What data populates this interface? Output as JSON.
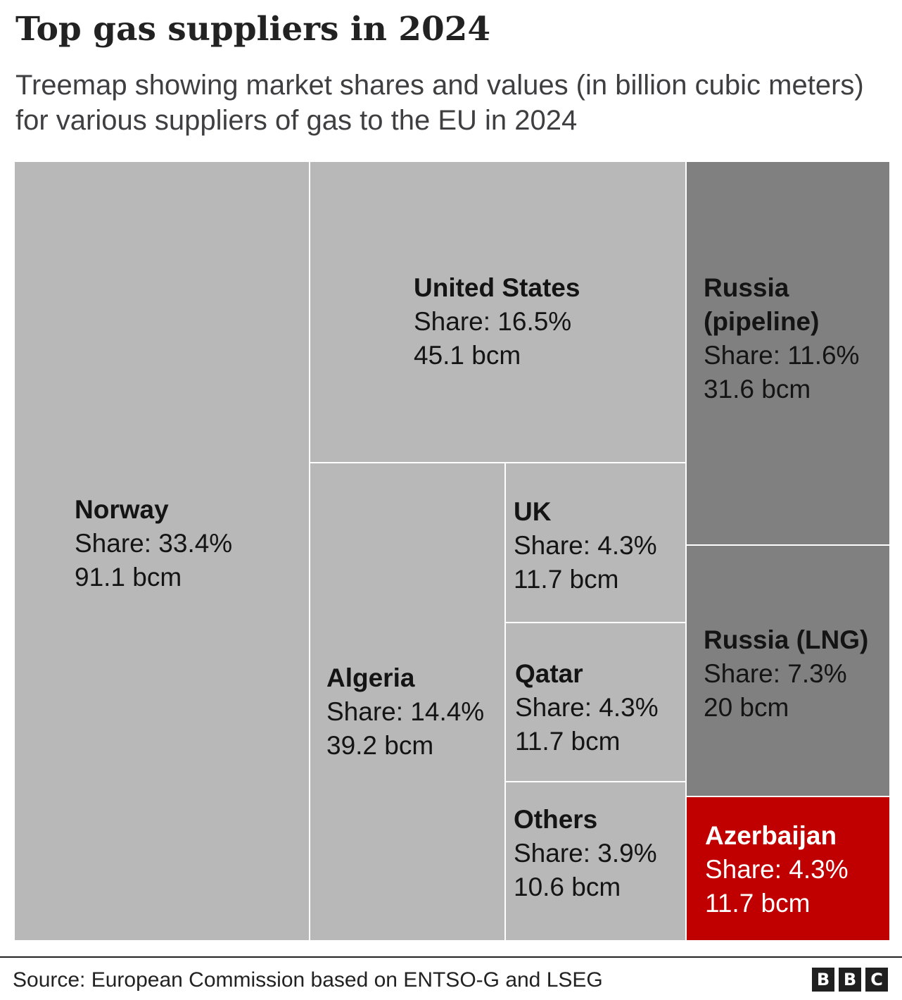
{
  "title": "Top gas suppliers in 2024",
  "subtitle": "Treemap showing market shares and values (in billion cubic meters) for various suppliers of gas to the EU in 2024",
  "source": "Source: European Commission based on ENTSO-G and LSEG",
  "logo": [
    "B",
    "B",
    "C"
  ],
  "colors": {
    "default": "#b8b8b8",
    "russia": "#808080",
    "highlight": "#c00000",
    "border": "#ffffff"
  },
  "chart_data": {
    "type": "treemap",
    "title": "Top gas suppliers in 2024",
    "units": "bcm",
    "items": [
      {
        "name": "Norway",
        "share": "Share: 33.4%",
        "value": "91.1 bcm",
        "share_pct": 33.4,
        "bcm": 91.1,
        "color": "#b8b8b8"
      },
      {
        "name": "United States",
        "share": "Share: 16.5%",
        "value": "45.1 bcm",
        "share_pct": 16.5,
        "bcm": 45.1,
        "color": "#b8b8b8"
      },
      {
        "name": "Algeria",
        "share": "Share: 14.4%",
        "value": "39.2 bcm",
        "share_pct": 14.4,
        "bcm": 39.2,
        "color": "#b8b8b8"
      },
      {
        "name": "UK",
        "share": "Share: 4.3%",
        "value": "11.7 bcm",
        "share_pct": 4.3,
        "bcm": 11.7,
        "color": "#b8b8b8"
      },
      {
        "name": "Qatar",
        "share": "Share: 4.3%",
        "value": "11.7 bcm",
        "share_pct": 4.3,
        "bcm": 11.7,
        "color": "#b8b8b8"
      },
      {
        "name": "Others",
        "share": "Share: 3.9%",
        "value": "10.6 bcm",
        "share_pct": 3.9,
        "bcm": 10.6,
        "color": "#b8b8b8"
      },
      {
        "name": "Russia (pipeline)",
        "share": "Share: 11.6%",
        "value": "31.6 bcm",
        "share_pct": 11.6,
        "bcm": 31.6,
        "color": "#808080"
      },
      {
        "name": "Russia (LNG)",
        "share": "Share: 7.3%",
        "value": "20 bcm",
        "share_pct": 7.3,
        "bcm": 20,
        "color": "#808080"
      },
      {
        "name": "Azerbaijan",
        "share": "Share: 4.3%",
        "value": "11.7 bcm",
        "share_pct": 4.3,
        "bcm": 11.7,
        "color": "#c00000"
      }
    ]
  }
}
